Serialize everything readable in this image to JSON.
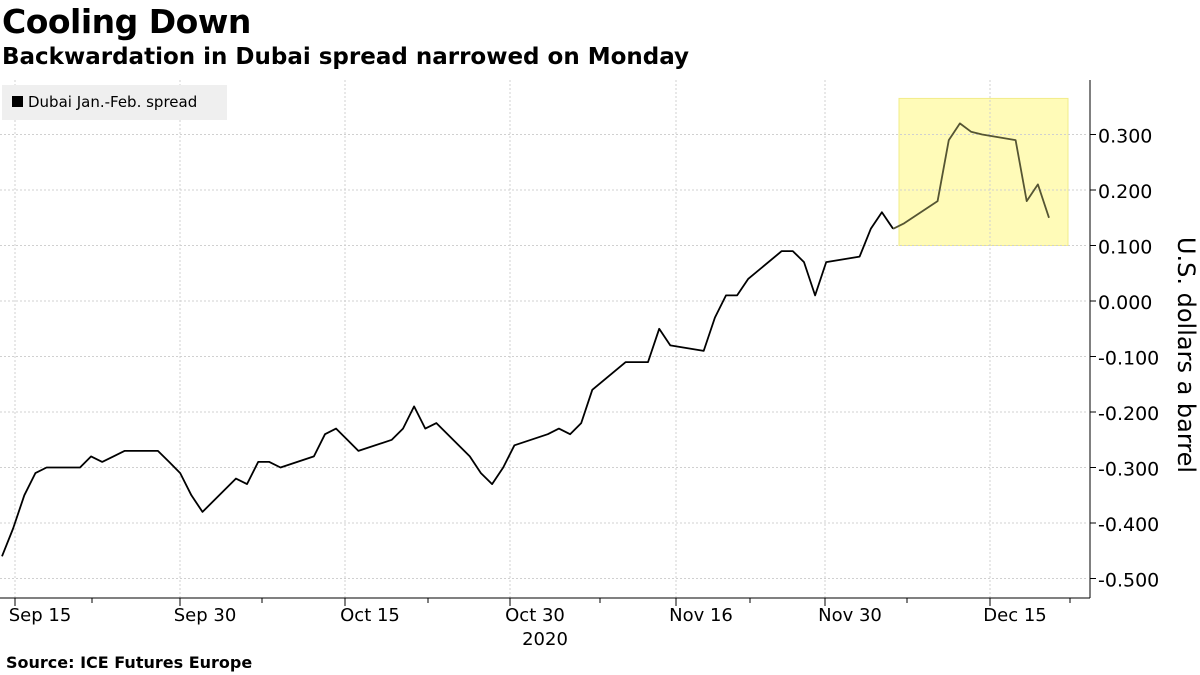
{
  "header": {
    "title": "Cooling Down",
    "subtitle": "Backwardation in Dubai spread narrowed on Monday"
  },
  "footer": {
    "source": "Source: ICE Futures Europe"
  },
  "chart_data": {
    "type": "line",
    "title": "Cooling Down",
    "subtitle": "Backwardation in Dubai spread narrowed on Monday",
    "xlabel": "2020",
    "ylabel": "U.S. dollars a barrel",
    "ylim": [
      -0.5,
      0.3
    ],
    "y_ticks": [
      0.3,
      0.2,
      0.1,
      0.0,
      -0.1,
      -0.2,
      -0.3,
      -0.4,
      -0.5
    ],
    "y_tick_labels": [
      "0.300",
      "0.200",
      "0.100",
      "0.000",
      "-0.100",
      "-0.200",
      "-0.300",
      "-0.400",
      "-0.500"
    ],
    "x_tick_labels": [
      "Sep 15",
      "Sep 30",
      "Oct 15",
      "Oct 30",
      "Nov 16",
      "Nov 30",
      "Dec 15"
    ],
    "x_year_label": "2020",
    "grid": true,
    "legend_position": "top-left",
    "highlight": {
      "x_start": "2020-12-07",
      "x_end": "2020-12-21",
      "y_min": 0.1,
      "y_max": 0.365,
      "color": "#fffbb8"
    },
    "series": [
      {
        "name": "Dubai Jan.-Feb. spread",
        "color": "#000000",
        "highlight_color": "#555533",
        "points": [
          [
            "2020-09-14",
            -0.46
          ],
          [
            "2020-09-15",
            -0.41
          ],
          [
            "2020-09-16",
            -0.35
          ],
          [
            "2020-09-17",
            -0.31
          ],
          [
            "2020-09-18",
            -0.3
          ],
          [
            "2020-09-21",
            -0.3
          ],
          [
            "2020-09-22",
            -0.28
          ],
          [
            "2020-09-23",
            -0.29
          ],
          [
            "2020-09-24",
            -0.28
          ],
          [
            "2020-09-25",
            -0.27
          ],
          [
            "2020-09-28",
            -0.27
          ],
          [
            "2020-09-29",
            -0.29
          ],
          [
            "2020-09-30",
            -0.31
          ],
          [
            "2020-10-01",
            -0.35
          ],
          [
            "2020-10-02",
            -0.38
          ],
          [
            "2020-10-05",
            -0.32
          ],
          [
            "2020-10-06",
            -0.33
          ],
          [
            "2020-10-07",
            -0.29
          ],
          [
            "2020-10-08",
            -0.29
          ],
          [
            "2020-10-09",
            -0.3
          ],
          [
            "2020-10-12",
            -0.28
          ],
          [
            "2020-10-13",
            -0.24
          ],
          [
            "2020-10-14",
            -0.23
          ],
          [
            "2020-10-15",
            -0.25
          ],
          [
            "2020-10-16",
            -0.27
          ],
          [
            "2020-10-19",
            -0.25
          ],
          [
            "2020-10-20",
            -0.23
          ],
          [
            "2020-10-21",
            -0.19
          ],
          [
            "2020-10-22",
            -0.23
          ],
          [
            "2020-10-23",
            -0.22
          ],
          [
            "2020-10-26",
            -0.28
          ],
          [
            "2020-10-27",
            -0.31
          ],
          [
            "2020-10-28",
            -0.33
          ],
          [
            "2020-10-29",
            -0.3
          ],
          [
            "2020-10-30",
            -0.26
          ],
          [
            "2020-11-02",
            -0.24
          ],
          [
            "2020-11-03",
            -0.23
          ],
          [
            "2020-11-04",
            -0.24
          ],
          [
            "2020-11-05",
            -0.22
          ],
          [
            "2020-11-06",
            -0.16
          ],
          [
            "2020-11-09",
            -0.11
          ],
          [
            "2020-11-10",
            -0.11
          ],
          [
            "2020-11-11",
            -0.11
          ],
          [
            "2020-11-12",
            -0.05
          ],
          [
            "2020-11-13",
            -0.08
          ],
          [
            "2020-11-16",
            -0.09
          ],
          [
            "2020-11-17",
            -0.03
          ],
          [
            "2020-11-18",
            0.01
          ],
          [
            "2020-11-19",
            0.01
          ],
          [
            "2020-11-20",
            0.04
          ],
          [
            "2020-11-23",
            0.09
          ],
          [
            "2020-11-24",
            0.09
          ],
          [
            "2020-11-25",
            0.07
          ],
          [
            "2020-11-26",
            0.01
          ],
          [
            "2020-11-27",
            0.07
          ],
          [
            "2020-11-30",
            0.08
          ],
          [
            "2020-12-01",
            0.13
          ],
          [
            "2020-12-02",
            0.16
          ],
          [
            "2020-12-03",
            0.13
          ],
          [
            "2020-12-04",
            0.14
          ],
          [
            "2020-12-07",
            0.18
          ],
          [
            "2020-12-08",
            0.29
          ],
          [
            "2020-12-09",
            0.32
          ],
          [
            "2020-12-10",
            0.305
          ],
          [
            "2020-12-11",
            0.3
          ],
          [
            "2020-12-14",
            0.29
          ],
          [
            "2020-12-15",
            0.18
          ],
          [
            "2020-12-16",
            0.21
          ],
          [
            "2020-12-17",
            0.15
          ]
        ]
      }
    ]
  }
}
